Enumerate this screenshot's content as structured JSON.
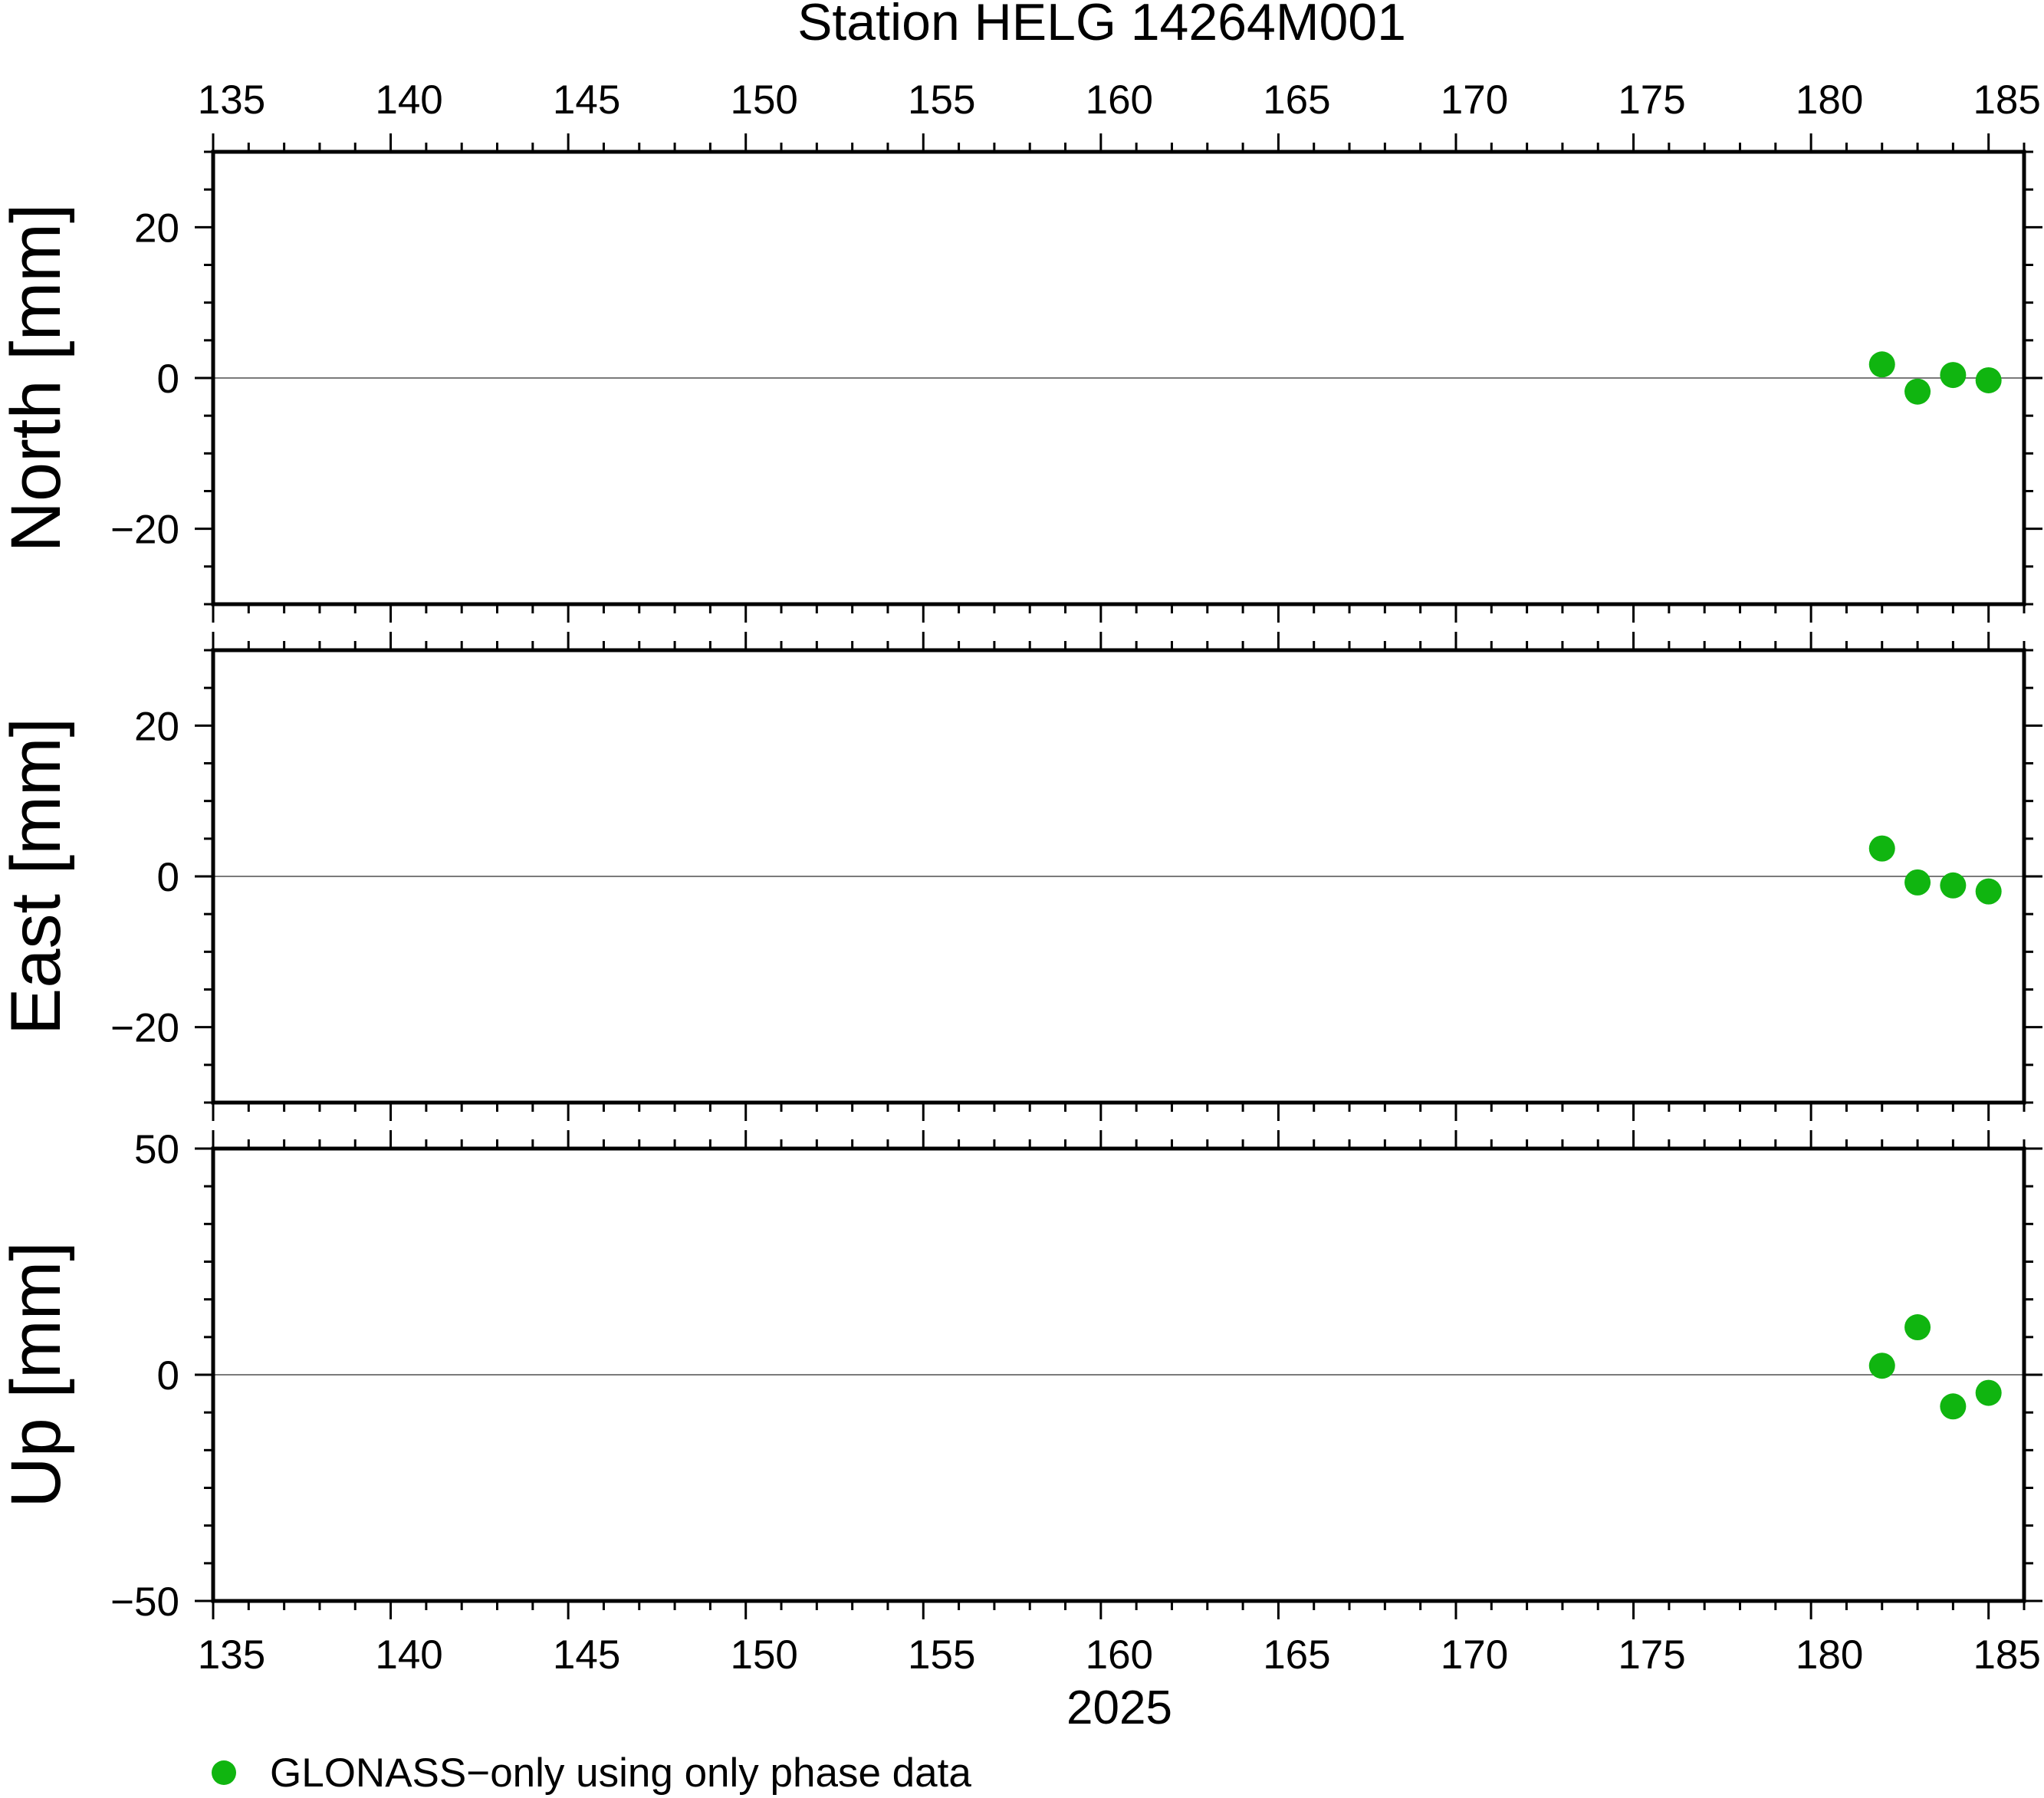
{
  "chart_data": {
    "type": "scatter",
    "title": "Station HELG 14264M001",
    "xlabel": "2025",
    "xlim": [
      135,
      186
    ],
    "x_ticks": [
      135,
      140,
      145,
      150,
      155,
      160,
      165,
      170,
      175,
      180,
      185
    ],
    "marker_color": "#10b510",
    "legend": {
      "position": "bottom-left",
      "label": "GLONASS−only using only phase data"
    },
    "panels": [
      {
        "ylabel": "North [mm]",
        "ylim": [
          -30,
          30
        ],
        "y_ticks": [
          -20,
          0,
          20
        ],
        "y_tick_labels": [
          "−20",
          "0",
          "20"
        ],
        "x": [
          182,
          183,
          184,
          185
        ],
        "y": [
          1.8,
          -1.8,
          0.4,
          -0.3
        ]
      },
      {
        "ylabel": "East [mm]",
        "ylim": [
          -30,
          30
        ],
        "y_ticks": [
          -20,
          0,
          20
        ],
        "y_tick_labels": [
          "−20",
          "0",
          "20"
        ],
        "x": [
          182,
          183,
          184,
          185
        ],
        "y": [
          3.7,
          -0.8,
          -1.2,
          -2.0
        ]
      },
      {
        "ylabel": "Up [mm]",
        "ylim": [
          -50,
          50
        ],
        "y_ticks": [
          -50,
          0,
          50
        ],
        "y_tick_labels": [
          "−50",
          "0",
          "50"
        ],
        "x": [
          182,
          183,
          184,
          185
        ],
        "y": [
          2.0,
          10.5,
          -7.0,
          -4.0
        ]
      }
    ]
  }
}
